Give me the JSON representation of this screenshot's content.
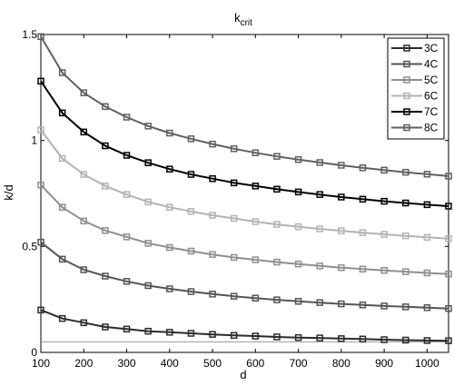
{
  "chart_data": {
    "type": "line",
    "title": "k",
    "title_subscript": "crit",
    "xlabel": "d",
    "ylabel": "k/d",
    "xlim": [
      100,
      1050
    ],
    "ylim": [
      0,
      1.5
    ],
    "x": [
      100,
      150,
      200,
      250,
      300,
      350,
      400,
      450,
      500,
      550,
      600,
      650,
      700,
      750,
      800,
      850,
      900,
      950,
      1000,
      1050
    ],
    "x_ticks": [
      "100",
      "200",
      "300",
      "400",
      "500",
      "600",
      "700",
      "800",
      "900",
      "1000"
    ],
    "x_tick_values": [
      100,
      200,
      300,
      400,
      500,
      600,
      700,
      800,
      900,
      1000
    ],
    "y_ticks": [
      "0",
      "0.5",
      "1",
      "1.5"
    ],
    "y_tick_values": [
      0,
      0.5,
      1,
      1.5
    ],
    "grid": false,
    "legend_position": "top-right",
    "reference_line_y": 0.05,
    "reference_line_color": "#999999",
    "series": [
      {
        "name": "3C",
        "color": "#2b2b2b",
        "values": [
          0.2,
          0.16,
          0.14,
          0.12,
          0.11,
          0.1,
          0.095,
          0.09,
          0.085,
          0.08,
          0.077,
          0.073,
          0.07,
          0.068,
          0.065,
          0.063,
          0.06,
          0.058,
          0.056,
          0.055
        ]
      },
      {
        "name": "4C",
        "color": "#555555",
        "values": [
          0.52,
          0.44,
          0.39,
          0.36,
          0.335,
          0.315,
          0.3,
          0.287,
          0.275,
          0.265,
          0.256,
          0.248,
          0.241,
          0.235,
          0.229,
          0.224,
          0.219,
          0.215,
          0.211,
          0.207
        ]
      },
      {
        "name": "5C",
        "color": "#8f8f8f",
        "values": [
          0.79,
          0.685,
          0.62,
          0.575,
          0.545,
          0.515,
          0.495,
          0.478,
          0.462,
          0.448,
          0.437,
          0.426,
          0.417,
          0.408,
          0.4,
          0.393,
          0.387,
          0.381,
          0.375,
          0.37
        ]
      },
      {
        "name": "6C",
        "color": "#b3b3b3",
        "values": [
          1.05,
          0.915,
          0.84,
          0.785,
          0.745,
          0.71,
          0.685,
          0.665,
          0.647,
          0.632,
          0.617,
          0.604,
          0.593,
          0.583,
          0.574,
          0.565,
          0.557,
          0.55,
          0.543,
          0.537
        ]
      },
      {
        "name": "7C",
        "color": "#000000",
        "values": [
          1.28,
          1.13,
          1.04,
          0.975,
          0.93,
          0.895,
          0.865,
          0.84,
          0.82,
          0.8,
          0.785,
          0.77,
          0.757,
          0.745,
          0.733,
          0.723,
          0.713,
          0.705,
          0.697,
          0.69
        ]
      },
      {
        "name": "8C",
        "color": "#606060",
        "values": [
          1.49,
          1.32,
          1.225,
          1.16,
          1.11,
          1.068,
          1.035,
          1.008,
          0.983,
          0.961,
          0.942,
          0.925,
          0.91,
          0.896,
          0.883,
          0.871,
          0.86,
          0.85,
          0.841,
          0.832
        ]
      }
    ]
  }
}
